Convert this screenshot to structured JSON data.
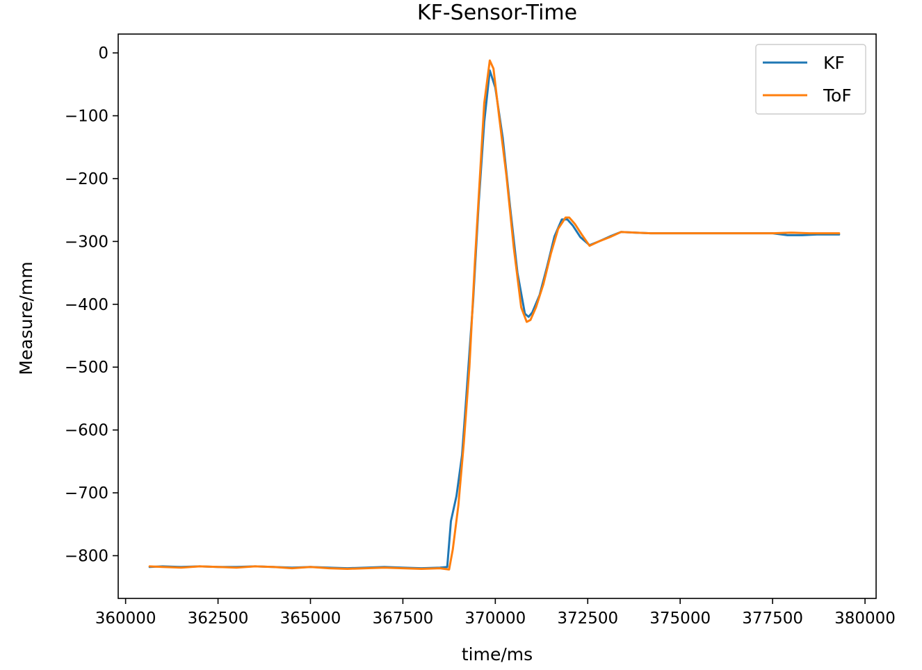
{
  "chart_data": {
    "type": "line",
    "title": "KF-Sensor-Time",
    "xlabel": "time/ms",
    "ylabel": "Measure/mm",
    "xlim": [
      359800,
      380300
    ],
    "ylim": [
      -868,
      30
    ],
    "x_ticks": [
      360000,
      362500,
      365000,
      367500,
      370000,
      372500,
      375000,
      377500,
      380000
    ],
    "x_tick_labels": [
      "360000",
      "362500",
      "365000",
      "367500",
      "370000",
      "372500",
      "375000",
      "377500",
      "380000"
    ],
    "y_ticks": [
      0,
      -100,
      -200,
      -300,
      -400,
      -500,
      -600,
      -700,
      -800
    ],
    "y_tick_labels": [
      "0",
      "−100",
      "−200",
      "−300",
      "−400",
      "−500",
      "−600",
      "−700",
      "−800"
    ],
    "grid": false,
    "legend": {
      "placement": "top-right",
      "entries": [
        "KF",
        "ToF"
      ]
    },
    "series": [
      {
        "name": "KF",
        "color": "#1f77b4",
        "x": [
          360650,
          361000,
          361500,
          362000,
          362500,
          363000,
          363500,
          364000,
          364500,
          365000,
          365500,
          366000,
          366500,
          367000,
          367500,
          368000,
          368500,
          368700,
          368800,
          368950,
          369100,
          369200,
          369400,
          369550,
          369700,
          369850,
          370000,
          370200,
          370400,
          370600,
          370800,
          370900,
          371000,
          371200,
          371400,
          371600,
          371800,
          371950,
          372100,
          372300,
          372550,
          372800,
          373100,
          373400,
          373800,
          374200,
          374600,
          375000,
          375500,
          376000,
          376500,
          377000,
          377500,
          377900,
          378300,
          378700,
          379000,
          379300
        ],
        "y": [
          -818,
          -817,
          -818,
          -817,
          -818,
          -818,
          -817,
          -818,
          -819,
          -818,
          -819,
          -820,
          -819,
          -818,
          -819,
          -820,
          -819,
          -818,
          -745,
          -705,
          -640,
          -560,
          -395,
          -240,
          -110,
          -28,
          -55,
          -135,
          -245,
          -350,
          -415,
          -420,
          -413,
          -385,
          -340,
          -292,
          -265,
          -265,
          -275,
          -293,
          -306,
          -300,
          -292,
          -285,
          -286,
          -287,
          -287,
          -287,
          -287,
          -287,
          -287,
          -287,
          -287,
          -290,
          -290,
          -289,
          -289,
          -289
        ]
      },
      {
        "name": "ToF",
        "color": "#ff7f0e",
        "x": [
          360650,
          361000,
          361500,
          362000,
          362500,
          363000,
          363500,
          364000,
          364500,
          365000,
          365500,
          366000,
          366500,
          367000,
          367500,
          368000,
          368500,
          368750,
          368850,
          369000,
          369150,
          369300,
          369450,
          369600,
          369700,
          369850,
          369950,
          370100,
          370300,
          370500,
          370700,
          370850,
          370950,
          371100,
          371300,
          371500,
          371700,
          371900,
          372000,
          372150,
          372350,
          372550,
          372800,
          373100,
          373400,
          373800,
          374200,
          374600,
          375000,
          375500,
          376000,
          376500,
          377000,
          377500,
          378000,
          378500,
          379000,
          379300
        ],
        "y": [
          -817,
          -818,
          -819,
          -817,
          -818,
          -819,
          -817,
          -818,
          -820,
          -818,
          -820,
          -821,
          -820,
          -819,
          -820,
          -821,
          -820,
          -822,
          -790,
          -720,
          -620,
          -500,
          -330,
          -180,
          -80,
          -12,
          -25,
          -100,
          -195,
          -310,
          -405,
          -428,
          -425,
          -405,
          -368,
          -320,
          -280,
          -262,
          -262,
          -272,
          -290,
          -307,
          -300,
          -293,
          -285,
          -286,
          -287,
          -287,
          -287,
          -287,
          -287,
          -287,
          -287,
          -287,
          -286,
          -287,
          -287,
          -287
        ]
      }
    ]
  }
}
